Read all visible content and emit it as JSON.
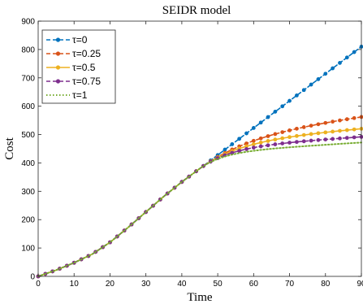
{
  "chart_data": {
    "type": "line",
    "title": "SEIDR model",
    "xlabel": "Time",
    "ylabel": "Cost",
    "xlim": [
      0,
      90
    ],
    "ylim": [
      0,
      900
    ],
    "xticks": [
      "0",
      "10",
      "20",
      "30",
      "40",
      "50",
      "60",
      "70",
      "80",
      "90"
    ],
    "yticks": [
      "0",
      "100",
      "200",
      "300",
      "400",
      "500",
      "600",
      "700",
      "800",
      "900"
    ],
    "grid": false,
    "legend_position": "top-left",
    "series": [
      {
        "name": "τ=0",
        "color": "#0072BD",
        "marker": "circle",
        "linestyle": "dashed",
        "final": 810,
        "growth_after_45": "linear"
      },
      {
        "name": "τ=0.25",
        "color": "#D95319",
        "marker": "circle",
        "linestyle": "dashed",
        "final": 573,
        "growth_after_45": "saturating"
      },
      {
        "name": "τ=0.5",
        "color": "#EDB120",
        "marker": "circle",
        "linestyle": "solid",
        "final": 510,
        "growth_after_45": "saturating"
      },
      {
        "name": "τ=0.75",
        "color": "#7E2F8E",
        "marker": "circle",
        "linestyle": "dashed",
        "final": 487,
        "growth_after_45": "saturating"
      },
      {
        "name": "τ=1",
        "color": "#77AC30",
        "marker": "none",
        "linestyle": "dotted",
        "final": 480,
        "growth_after_45": "saturating"
      }
    ],
    "shared_curve_0_to_45": {
      "x": [
        0,
        5,
        10,
        15,
        20,
        25,
        30,
        35,
        40,
        45
      ],
      "y": [
        0,
        22,
        48,
        78,
        120,
        172,
        227,
        282,
        333,
        380
      ]
    }
  }
}
